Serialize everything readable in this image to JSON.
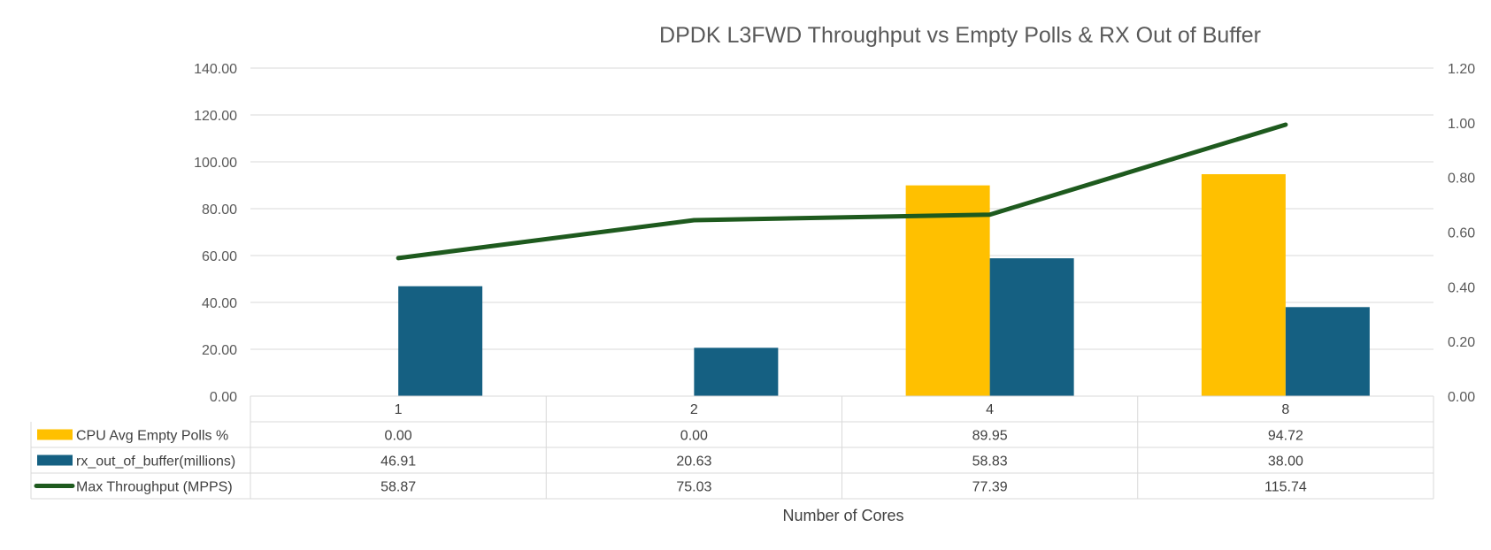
{
  "chart_data": {
    "type": "bar",
    "title": "DPDK L3FWD Throughput vs Empty Polls & RX Out of Buffer",
    "xlabel": "Number of Cores",
    "ylabel": "",
    "categories": [
      "1",
      "2",
      "4",
      "8"
    ],
    "ylim": [
      0,
      140
    ],
    "yticks": [
      "0.00",
      "20.00",
      "40.00",
      "60.00",
      "80.00",
      "100.00",
      "120.00",
      "140.00"
    ],
    "y2lim": [
      0,
      1.2
    ],
    "y2ticks": [
      "0.00",
      "0.20",
      "0.40",
      "0.60",
      "0.80",
      "1.00",
      "1.20"
    ],
    "grid": true,
    "legend": "data-table-left",
    "series": [
      {
        "name": "CPU Avg Empty Polls %",
        "kind": "bar",
        "axis": "left",
        "color": "#FFC000",
        "values": [
          0,
          0,
          89.95,
          94.72
        ],
        "labels": [
          "0.00",
          "0.00",
          "89.95",
          "94.72"
        ]
      },
      {
        "name": "rx_out_of_buffer(millions)",
        "kind": "bar",
        "axis": "left",
        "color": "#156082",
        "values": [
          46.91,
          20.63,
          58.83,
          38.0
        ],
        "labels": [
          "46.91",
          "20.63",
          "58.83",
          "38.00"
        ]
      },
      {
        "name": "Max Throughput (MPPS)",
        "kind": "line",
        "axis": "right",
        "color": "#1E5A1E",
        "values": [
          58.87,
          75.03,
          77.39,
          115.74
        ],
        "labels": [
          "58.87",
          "75.03",
          "77.39",
          "115.74"
        ]
      }
    ]
  }
}
